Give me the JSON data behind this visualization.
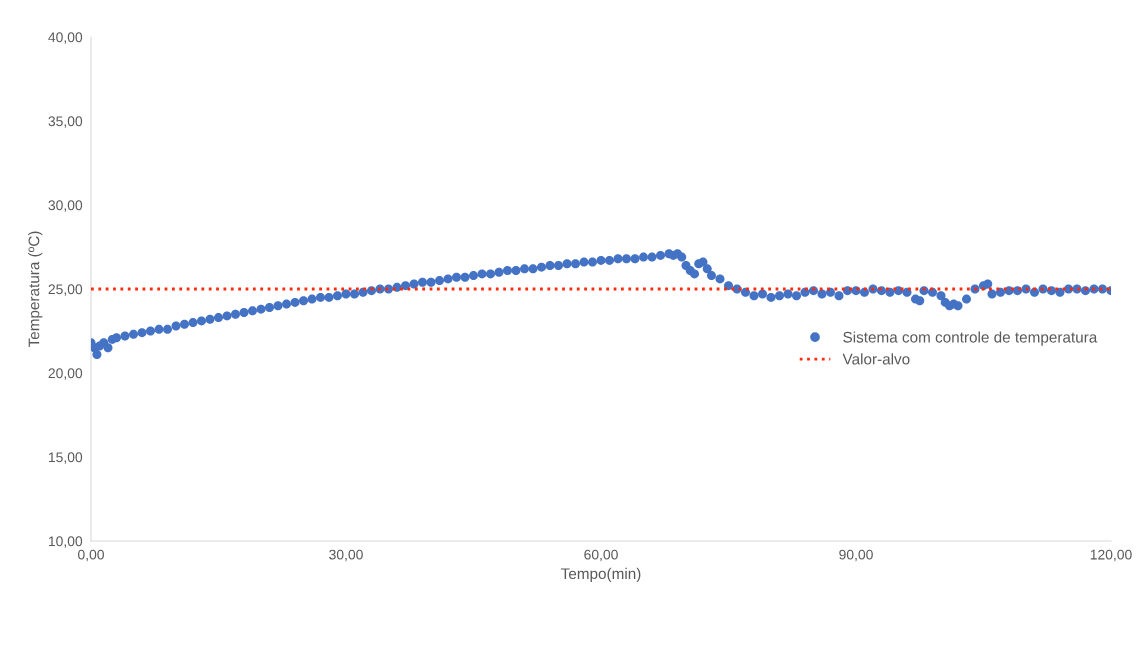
{
  "chart_data": {
    "type": "scatter",
    "xlabel": "Tempo(min)",
    "ylabel": "Temperatura (ºC)",
    "xlim": [
      0,
      120
    ],
    "ylim": [
      10,
      40
    ],
    "xticks": [
      {
        "value": 0,
        "label": "0,00"
      },
      {
        "value": 30,
        "label": "30,00"
      },
      {
        "value": 60,
        "label": "60,00"
      },
      {
        "value": 90,
        "label": "90,00"
      },
      {
        "value": 120,
        "label": "120,00"
      }
    ],
    "yticks": [
      {
        "value": 10,
        "label": "10,00"
      },
      {
        "value": 15,
        "label": "15,00"
      },
      {
        "value": 20,
        "label": "20,00"
      },
      {
        "value": 25,
        "label": "25,00"
      },
      {
        "value": 30,
        "label": "30,00"
      },
      {
        "value": 35,
        "label": "35,00"
      },
      {
        "value": 40,
        "label": "40,00"
      }
    ],
    "grid": false,
    "legend": "right",
    "series": [
      {
        "name": "Sistema com controle de temperatura",
        "color": "#4472c4",
        "marker": "circle",
        "x": [
          0,
          0.4,
          0.7,
          1,
          1.5,
          2,
          2.5,
          3,
          4,
          5,
          6,
          7,
          8,
          9,
          10,
          11,
          12,
          13,
          14,
          15,
          16,
          17,
          18,
          19,
          20,
          21,
          22,
          23,
          24,
          25,
          26,
          27,
          28,
          29,
          30,
          31,
          32,
          33,
          34,
          35,
          36,
          37,
          38,
          39,
          40,
          41,
          42,
          43,
          44,
          45,
          46,
          47,
          48,
          49,
          50,
          51,
          52,
          53,
          54,
          55,
          56,
          57,
          58,
          59,
          60,
          61,
          62,
          63,
          64,
          65,
          66,
          67,
          68,
          68.5,
          69,
          69.5,
          70,
          70.5,
          71,
          71.5,
          72,
          72.5,
          73,
          74,
          75,
          76,
          77,
          78,
          79,
          80,
          81,
          82,
          83,
          84,
          85,
          86,
          87,
          88,
          89,
          90,
          91,
          92,
          93,
          94,
          95,
          96,
          97,
          97.5,
          98,
          99,
          100,
          100.5,
          101,
          101.5,
          102,
          103,
          104,
          105,
          105.5,
          106,
          107,
          108,
          109,
          110,
          111,
          112,
          113,
          114,
          115,
          116,
          117,
          118,
          119,
          120
        ],
        "values": [
          21.8,
          21.5,
          21.1,
          21.6,
          21.8,
          21.5,
          22.0,
          22.1,
          22.2,
          22.3,
          22.4,
          22.5,
          22.6,
          22.6,
          22.8,
          22.9,
          23.0,
          23.1,
          23.2,
          23.3,
          23.4,
          23.5,
          23.6,
          23.7,
          23.8,
          23.9,
          24.0,
          24.1,
          24.2,
          24.3,
          24.4,
          24.5,
          24.5,
          24.6,
          24.7,
          24.7,
          24.8,
          24.9,
          25.0,
          25.0,
          25.1,
          25.2,
          25.3,
          25.4,
          25.4,
          25.5,
          25.6,
          25.7,
          25.7,
          25.8,
          25.9,
          25.9,
          26.0,
          26.1,
          26.1,
          26.2,
          26.2,
          26.3,
          26.4,
          26.4,
          26.5,
          26.5,
          26.6,
          26.6,
          26.7,
          26.7,
          26.8,
          26.8,
          26.8,
          26.9,
          26.9,
          27.0,
          27.1,
          27.0,
          27.1,
          26.9,
          26.4,
          26.1,
          25.9,
          26.5,
          26.6,
          26.2,
          25.8,
          25.6,
          25.2,
          25.0,
          24.8,
          24.6,
          24.7,
          24.5,
          24.6,
          24.7,
          24.6,
          24.8,
          24.9,
          24.7,
          24.8,
          24.6,
          24.9,
          24.9,
          24.8,
          25.0,
          24.9,
          24.8,
          24.9,
          24.8,
          24.4,
          24.3,
          24.9,
          24.8,
          24.6,
          24.2,
          24.0,
          24.1,
          24.0,
          24.4,
          25.0,
          25.2,
          25.3,
          24.7,
          24.8,
          24.9,
          24.9,
          25.0,
          24.8,
          25.0,
          24.9,
          24.8,
          25.0,
          25.0,
          24.9,
          25.0,
          25.0,
          24.9
        ]
      },
      {
        "name": "Valor-alvo",
        "color": "#ff2a0a",
        "type": "line",
        "line_style": "dotted",
        "x": [
          0,
          120
        ],
        "values": [
          25,
          25
        ]
      }
    ]
  }
}
